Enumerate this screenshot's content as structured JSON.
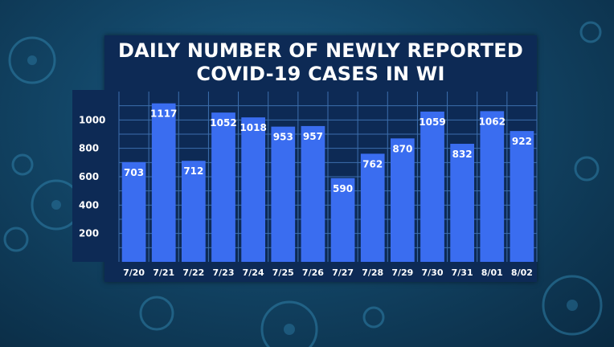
{
  "colors": {
    "bar": "#3a6df0",
    "panel": "#0d2a55",
    "grid": "#3d6fae",
    "text": "#ffffff"
  },
  "chart_data": {
    "type": "bar",
    "title": "DAILY NUMBER OF NEWLY REPORTED COVID-19 CASES IN WI",
    "categories": [
      "7/20",
      "7/21",
      "7/22",
      "7/23",
      "7/24",
      "7/25",
      "7/26",
      "7/27",
      "7/28",
      "7/29",
      "7/30",
      "7/31",
      "8/01",
      "8/02"
    ],
    "values": [
      703,
      1117,
      712,
      1052,
      1018,
      953,
      957,
      590,
      762,
      870,
      1059,
      832,
      1062,
      922
    ],
    "ylim": [
      0,
      1200
    ],
    "yticks": [
      200,
      400,
      600,
      800,
      1000
    ],
    "grid": true,
    "data_labels": true
  }
}
